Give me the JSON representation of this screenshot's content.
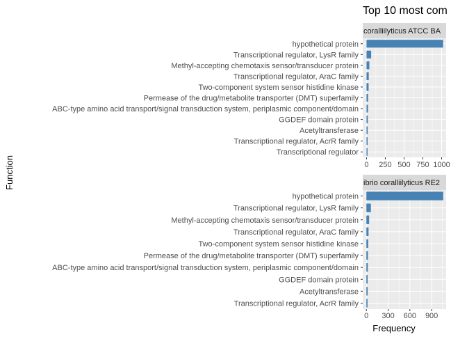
{
  "chart_data": {
    "type": "bar",
    "orientation": "horizontal",
    "title": "Top 10 most com",
    "xlabel": "Frequency",
    "ylabel": "Function",
    "bar_color": "#4682B4",
    "panel_background": "#EBEBEB",
    "strip_background": "#D9D9D9",
    "grid": true,
    "facets": [
      {
        "strip": "coralliilyticus ATCC BA",
        "categories": [
          "hypothetical protein",
          "Transcriptional regulator, LysR family",
          "Methyl-accepting chemotaxis sensor/transducer protein",
          "Transcriptional regulator, AraC family",
          "Two-component system sensor histidine kinase",
          "Permease of the drug/metabolite transporter (DMT) superfamily",
          "ABC-type amino acid transport/signal transduction system, periplasmic component/domain",
          "GGDEF domain protein",
          "Acetyltransferase",
          "Transcriptional regulator, AcrR family",
          "Transcriptional regulator"
        ],
        "values": [
          1020,
          62,
          38,
          30,
          28,
          22,
          20,
          18,
          16,
          15,
          14
        ],
        "xlim": [
          -50,
          1060
        ],
        "xticks": [
          0,
          250,
          500,
          750,
          1000
        ],
        "xtick_labels": [
          "0",
          "250",
          "500",
          "750",
          "1000"
        ]
      },
      {
        "strip": "ibrio coralliilyticus RE2",
        "categories": [
          "hypothetical protein",
          "Transcriptional regulator, LysR family",
          "Methyl-accepting chemotaxis sensor/transducer protein",
          "Transcriptional regulator, AraC family",
          "Two-component system sensor histidine kinase",
          "Permease of the drug/metabolite transporter (DMT) superfamily",
          "ABC-type amino acid transport/signal transduction system, periplasmic component/domain",
          "GGDEF domain protein",
          "Acetyltransferase",
          "Transcriptional regulator, AcrR family"
        ],
        "values": [
          1060,
          62,
          38,
          30,
          26,
          22,
          20,
          18,
          18,
          16
        ],
        "xlim": [
          -50,
          1100
        ],
        "xticks": [
          0,
          300,
          600,
          900
        ],
        "xtick_labels": [
          "0",
          "300",
          "600",
          "900"
        ]
      }
    ]
  }
}
